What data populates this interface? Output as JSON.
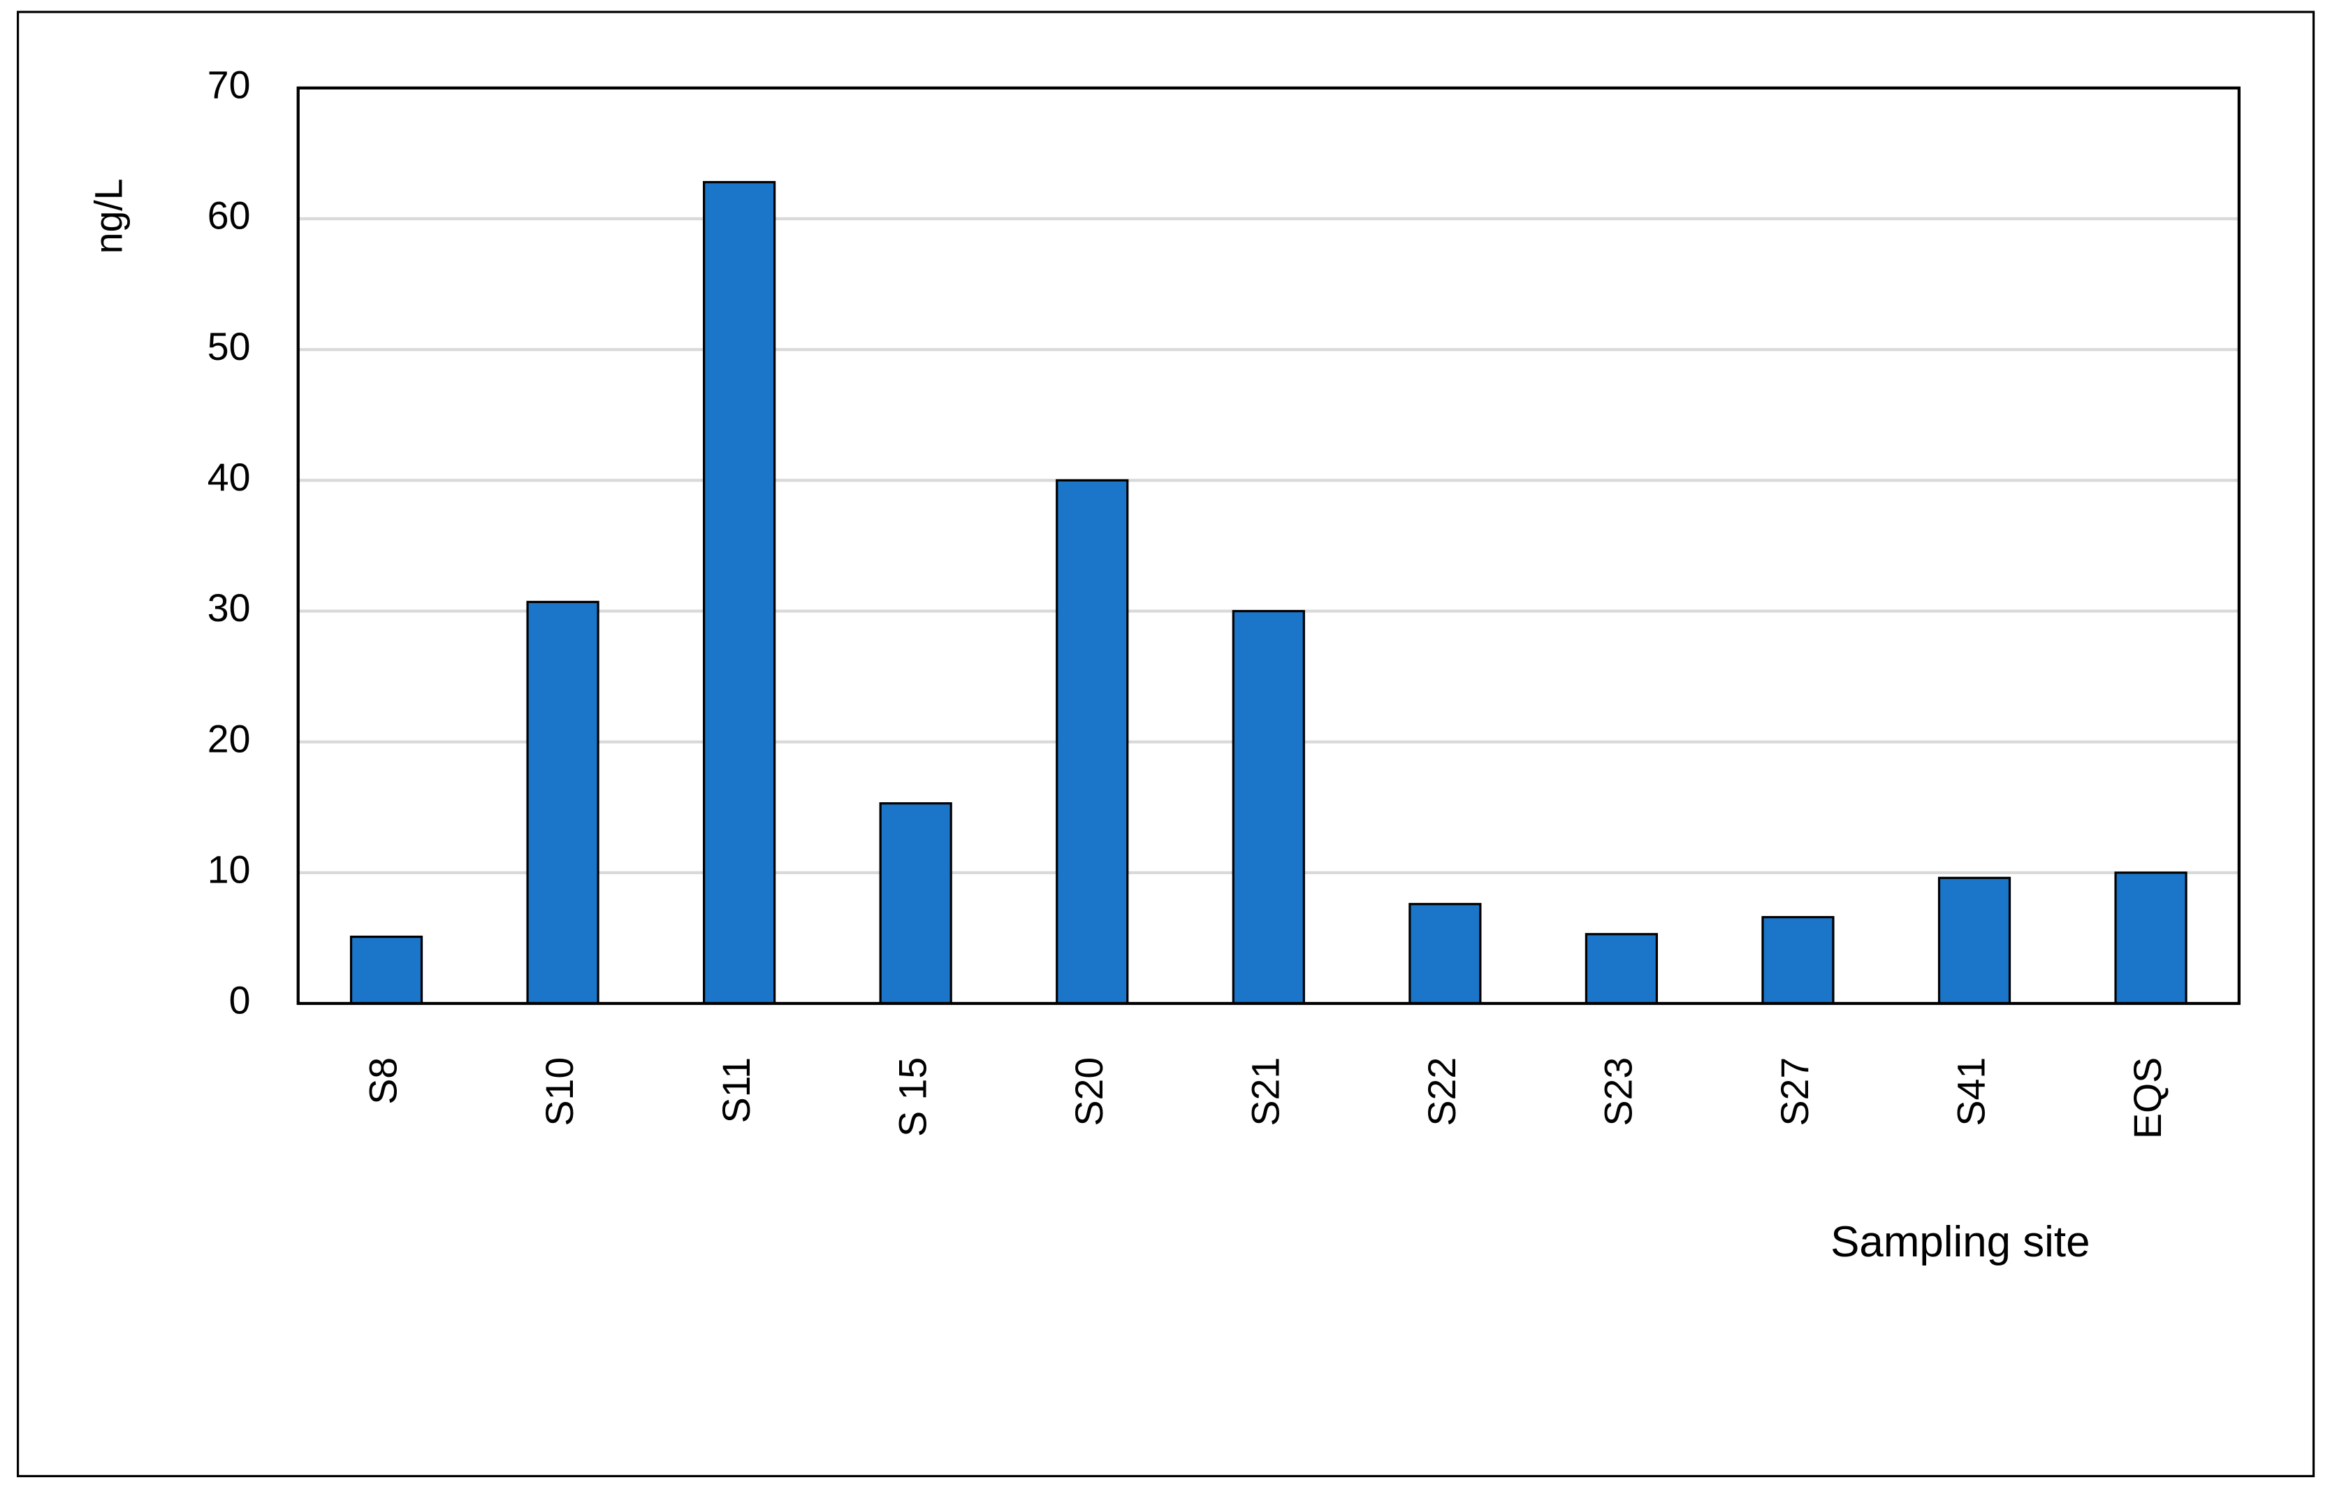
{
  "chart_data": {
    "type": "bar",
    "y_label": "ng/L",
    "x_label": "Sampling site",
    "categories": [
      "S8",
      "S10",
      "S11",
      "S 15",
      "S20",
      "S21",
      "S22",
      "S23",
      "S27",
      "S41",
      "EQS"
    ],
    "values": [
      5.1,
      30.7,
      62.8,
      15.3,
      40,
      30,
      7.6,
      5.3,
      6.6,
      9.6,
      10
    ],
    "color": "#1b75c8",
    "ylim": [
      0,
      70
    ],
    "yticks": [
      0,
      10,
      20,
      30,
      40,
      50,
      60,
      70
    ],
    "grid": true
  }
}
